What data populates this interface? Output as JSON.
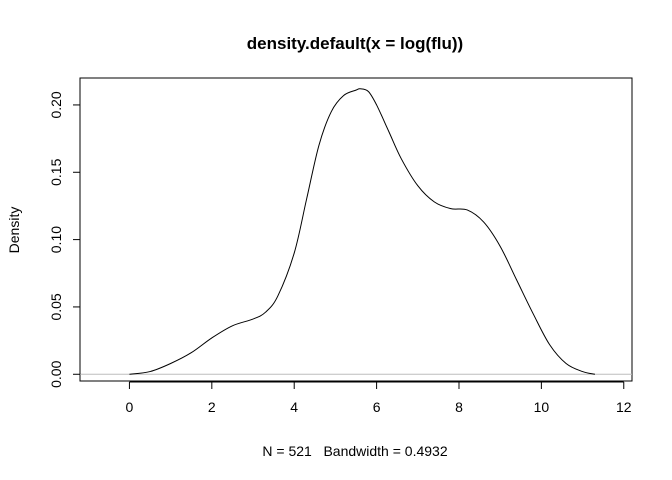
{
  "chart_data": {
    "type": "line",
    "title": "density.default(x = log(flu))",
    "xlabel": "N = 521   Bandwidth = 0.4932",
    "ylabel": "Density",
    "xlim": [
      -1.2,
      12.2
    ],
    "ylim": [
      -0.005,
      0.22
    ],
    "x_ticks": [
      "0",
      "2",
      "4",
      "6",
      "8",
      "10",
      "12"
    ],
    "y_ticks": [
      "0.00",
      "0.05",
      "0.10",
      "0.15",
      "0.20"
    ],
    "grid": false,
    "baseline_color": "#bebebe",
    "line_color": "#000000",
    "series": [
      {
        "x": [
          0.0,
          0.5,
          1.0,
          1.5,
          2.0,
          2.5,
          3.0,
          3.3,
          3.6,
          4.0,
          4.3,
          4.6,
          4.9,
          5.2,
          5.5,
          5.6,
          5.8,
          6.0,
          6.3,
          6.6,
          7.0,
          7.4,
          7.8,
          8.2,
          8.6,
          9.0,
          9.4,
          9.8,
          10.2,
          10.6,
          11.0,
          11.3
        ],
        "y": [
          0.0,
          0.002,
          0.008,
          0.016,
          0.027,
          0.036,
          0.041,
          0.046,
          0.058,
          0.09,
          0.13,
          0.17,
          0.195,
          0.207,
          0.211,
          0.212,
          0.21,
          0.2,
          0.18,
          0.16,
          0.14,
          0.128,
          0.123,
          0.122,
          0.113,
          0.095,
          0.07,
          0.045,
          0.022,
          0.008,
          0.002,
          0.0
        ]
      }
    ]
  }
}
